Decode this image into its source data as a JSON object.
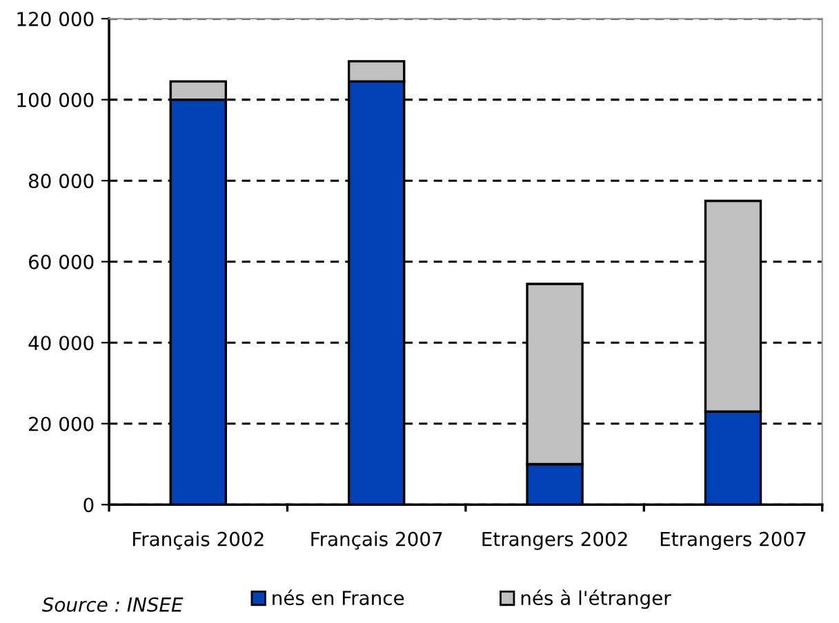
{
  "chart_data": {
    "type": "bar",
    "stacked": true,
    "categories": [
      "Français 2002",
      "Français 2007",
      "Etrangers 2002",
      "Etrangers 2007"
    ],
    "series": [
      {
        "name": "nés en France",
        "color": "#0041b8",
        "values": [
          100000,
          104500,
          10000,
          23000
        ]
      },
      {
        "name": "nés à l'étranger",
        "color": "#c0c0c0",
        "values": [
          4500,
          5000,
          44500,
          52000
        ]
      }
    ],
    "ylim": [
      0,
      120000
    ],
    "yticks": [
      {
        "value": 0,
        "label": "0"
      },
      {
        "value": 20000,
        "label": "20 000"
      },
      {
        "value": 40000,
        "label": "40 000"
      },
      {
        "value": 60000,
        "label": "60 000"
      },
      {
        "value": 80000,
        "label": "80 000"
      },
      {
        "value": 100000,
        "label": "100 000"
      },
      {
        "value": 120000,
        "label": "120 000"
      }
    ],
    "grid": "y",
    "legend": "bottom",
    "annotations": [
      "Source : INSEE"
    ]
  }
}
